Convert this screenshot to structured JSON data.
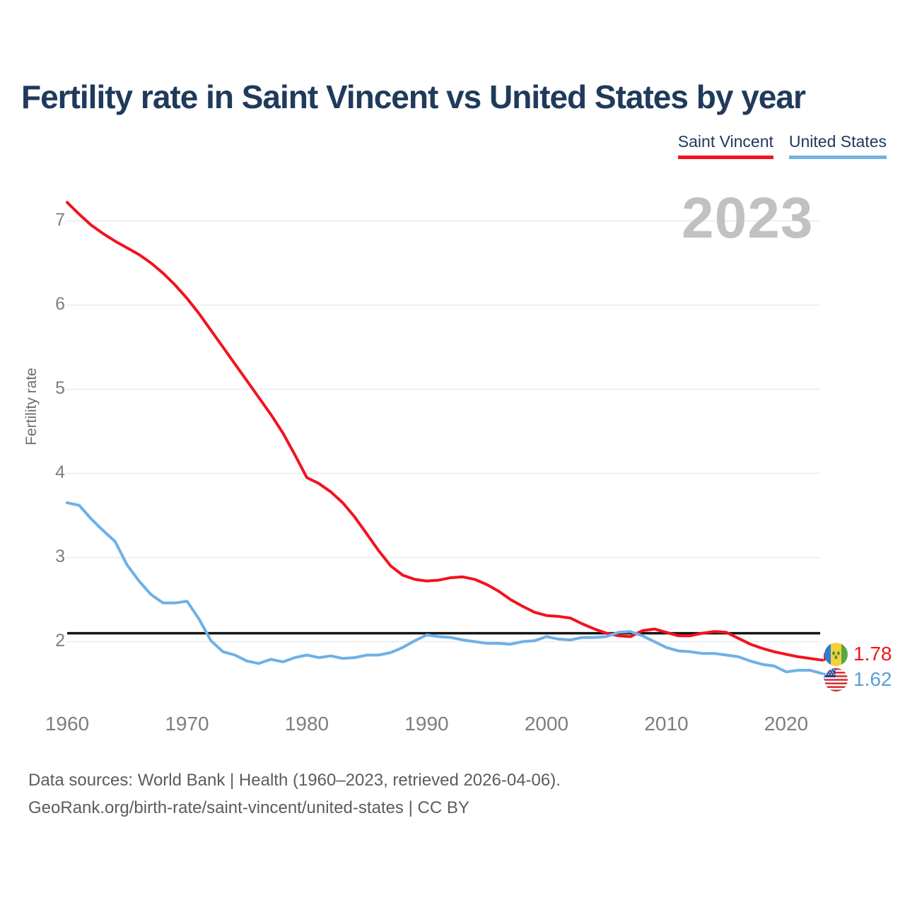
{
  "header": {
    "title": "Fertility rate in Saint Vincent vs United States by year"
  },
  "legend": [
    {
      "label": "Saint Vincent",
      "color": "#f2121f"
    },
    {
      "label": "United States",
      "color": "#74b2e2"
    }
  ],
  "watermark": "2023",
  "chart_data": {
    "type": "line",
    "title": "Fertility rate in Saint Vincent vs United States by year",
    "xlabel": "",
    "ylabel": "Fertility rate",
    "grid": "horizontal",
    "legend_position": "top-right",
    "ylim": [
      1.4,
      7.45
    ],
    "x_range": [
      1960,
      2023
    ],
    "yticks": [
      2,
      3,
      4,
      5,
      6,
      7
    ],
    "xticks": [
      1960,
      1970,
      1980,
      1990,
      2000,
      2010,
      2020
    ],
    "reference_line": {
      "value": 2.1,
      "color": "#141414"
    },
    "x": [
      1960,
      1961,
      1962,
      1963,
      1964,
      1965,
      1966,
      1967,
      1968,
      1969,
      1970,
      1971,
      1972,
      1973,
      1974,
      1975,
      1976,
      1977,
      1978,
      1979,
      1980,
      1981,
      1982,
      1983,
      1984,
      1985,
      1986,
      1987,
      1988,
      1989,
      1990,
      1991,
      1992,
      1993,
      1994,
      1995,
      1996,
      1997,
      1998,
      1999,
      2000,
      2001,
      2002,
      2003,
      2004,
      2005,
      2006,
      2007,
      2008,
      2009,
      2010,
      2011,
      2012,
      2013,
      2014,
      2015,
      2016,
      2017,
      2018,
      2019,
      2020,
      2021,
      2022,
      2023
    ],
    "series": [
      {
        "name": "Saint Vincent",
        "color": "#f2121f",
        "values": [
          7.22,
          7.08,
          6.95,
          6.85,
          6.76,
          6.68,
          6.6,
          6.5,
          6.38,
          6.24,
          6.08,
          5.9,
          5.7,
          5.5,
          5.3,
          5.1,
          4.9,
          4.7,
          4.48,
          4.22,
          3.95,
          3.88,
          3.78,
          3.65,
          3.48,
          3.28,
          3.08,
          2.9,
          2.79,
          2.74,
          2.72,
          2.73,
          2.76,
          2.77,
          2.74,
          2.68,
          2.6,
          2.5,
          2.42,
          2.35,
          2.31,
          2.3,
          2.28,
          2.21,
          2.15,
          2.1,
          2.07,
          2.06,
          2.13,
          2.15,
          2.11,
          2.07,
          2.07,
          2.1,
          2.12,
          2.11,
          2.04,
          1.97,
          1.92,
          1.88,
          1.85,
          1.82,
          1.8,
          1.78
        ]
      },
      {
        "name": "United States",
        "color": "#6fb0e6",
        "values": [
          3.65,
          3.62,
          3.46,
          3.32,
          3.19,
          2.91,
          2.72,
          2.56,
          2.46,
          2.46,
          2.48,
          2.27,
          2.01,
          1.88,
          1.84,
          1.77,
          1.74,
          1.79,
          1.76,
          1.81,
          1.84,
          1.81,
          1.83,
          1.8,
          1.81,
          1.84,
          1.84,
          1.87,
          1.93,
          2.01,
          2.08,
          2.06,
          2.05,
          2.02,
          2.0,
          1.98,
          1.98,
          1.97,
          2.0,
          2.01,
          2.06,
          2.03,
          2.02,
          2.05,
          2.05,
          2.06,
          2.11,
          2.12,
          2.07,
          2.0,
          1.93,
          1.89,
          1.88,
          1.86,
          1.86,
          1.84,
          1.82,
          1.77,
          1.73,
          1.71,
          1.64,
          1.66,
          1.66,
          1.62
        ]
      }
    ],
    "end_labels": [
      {
        "series": "Saint Vincent",
        "value": "1.78",
        "color": "#f2121f",
        "flag": "saint-vincent-flag-icon"
      },
      {
        "series": "United States",
        "value": "1.62",
        "color": "#5a9fd8",
        "flag": "united-states-flag-icon"
      }
    ]
  },
  "footer": {
    "line1": "Data sources: World Bank | Health (1960–2023, retrieved 2026-04-06).",
    "line2": "GeoRank.org/birth-rate/saint-vincent/united-states | CC BY"
  }
}
